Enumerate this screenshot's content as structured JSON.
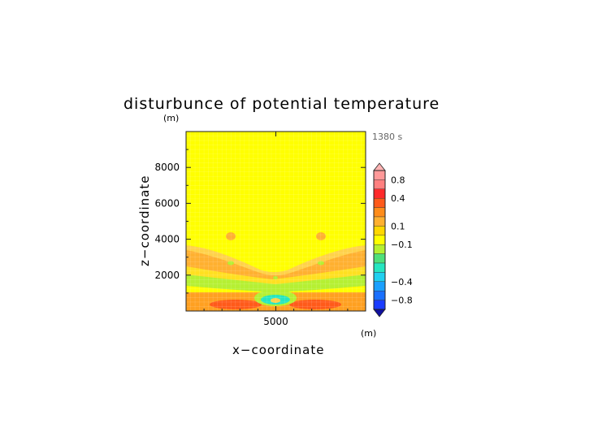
{
  "chart_data": {
    "type": "heatmap",
    "title": "disturbunce of potential temperature",
    "time_label": "1380 s",
    "xlabel": "x−coordinate",
    "ylabel": "z−coordinate",
    "x_unit": "(m)",
    "y_unit": "(m)",
    "x_ticks": [
      "5000"
    ],
    "y_ticks": [
      "2000",
      "4000",
      "6000",
      "8000"
    ],
    "xlim": [
      0,
      10000
    ],
    "ylim": [
      0,
      10000
    ],
    "colorbar_labels": [
      "0.8",
      "0.4",
      "0.1",
      "−0.1",
      "−0.4",
      "−0.8"
    ],
    "colorbar_bands": [
      {
        "range": "> 1.0",
        "color": "#ffb3b3"
      },
      {
        "range": "0.8 to 1.0",
        "color": "#ff9999"
      },
      {
        "range": "0.6 to 0.8",
        "color": "#ff8080"
      },
      {
        "range": "0.4 to 0.6",
        "color": "#ff2a2a"
      },
      {
        "range": "0.3 to 0.4",
        "color": "#ff5a1a"
      },
      {
        "range": "0.2 to 0.3",
        "color": "#ff8c1a"
      },
      {
        "range": "0.1 to 0.2",
        "color": "#ffb030"
      },
      {
        "range": "0.05 to 0.1",
        "color": "#ffd700"
      },
      {
        "range": "-0.05 to 0.05",
        "color": "#ffff00"
      },
      {
        "range": "-0.1 to -0.05",
        "color": "#b5f032"
      },
      {
        "range": "-0.2 to -0.1",
        "color": "#4fe07a"
      },
      {
        "range": "-0.3 to -0.2",
        "color": "#25e6c0"
      },
      {
        "range": "-0.4 to -0.3",
        "color": "#20d0f0"
      },
      {
        "range": "-0.6 to -0.4",
        "color": "#1aa0ff"
      },
      {
        "range": "-0.8 to -0.6",
        "color": "#1a70ff"
      },
      {
        "range": "-1.0 to -0.8",
        "color": "#1a3cff"
      },
      {
        "range": "< -1.0",
        "color": "#1010a0"
      }
    ],
    "background_level": "-0.05 to 0.05 (yellow)",
    "features": [
      "orange band 0.1-0.2 rising toward edges between z~800-3500 m",
      "red cores 0.3-0.4 near z~400 m at x~2500 and x~7500",
      "cyan/green cool anomaly -0.2 to -0.3 near center bottom (x~5000, z~600)",
      "green band -0.1 near z~1800 m"
    ]
  }
}
